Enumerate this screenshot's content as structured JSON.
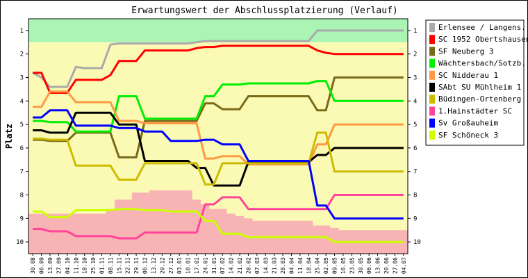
{
  "chart_data": {
    "type": "line",
    "title": "Erwartungswert der Abschlussplatzierung (Verlauf)",
    "ylabel": "Platz",
    "xlabel": "",
    "ylim": [
      1,
      10
    ],
    "y_inverted": true,
    "y_ticks": [
      1,
      2,
      3,
      4,
      5,
      6,
      7,
      8,
      9,
      10
    ],
    "x": [
      "30.08",
      "06.09",
      "13.09",
      "27.09",
      "04.10",
      "11.10",
      "18.10",
      "25.10",
      "01.11",
      "08.11",
      "15.11",
      "22.11",
      "29.11",
      "06.12",
      "13.12",
      "20.12",
      "27.12",
      "03.01",
      "10.01",
      "17.01",
      "24.01",
      "31.01",
      "07.02",
      "14.02",
      "21.02",
      "28.02",
      "07.03",
      "14.03",
      "21.03",
      "28.03",
      "04.04",
      "11.04",
      "18.04",
      "25.04",
      "02.05",
      "09.05",
      "16.05",
      "23.05",
      "30.05",
      "06.06",
      "13.06",
      "20.06",
      "27.06",
      "04.07"
    ],
    "grid": false,
    "legend_position": "right",
    "background_bands": [
      {
        "from": 0.5,
        "to": 1.5,
        "color": "#aaf5b4"
      },
      {
        "from": 1.5,
        "to": 10.5,
        "color": "#fafab4"
      }
    ],
    "area": {
      "name": "",
      "color": "#f8b4b4",
      "top": [
        8.8,
        8.8,
        8.8,
        8.8,
        8.8,
        8.8,
        8.8,
        8.8,
        8.8,
        8.6,
        8.2,
        8.2,
        7.9,
        7.9,
        7.8,
        7.8,
        7.8,
        7.8,
        7.8,
        8.2,
        8.4,
        8.6,
        8.6,
        8.8,
        8.9,
        9.0,
        9.1,
        9.1,
        9.1,
        9.1,
        9.1,
        9.1,
        9.1,
        9.3,
        9.3,
        9.4,
        9.5,
        9.5,
        9.5,
        9.5,
        9.5,
        9.5,
        9.5,
        9.5
      ]
    },
    "series": [
      {
        "name": "Erlensee / Langens.",
        "color": "#aaaaaa",
        "values": [
          2.8,
          3.0,
          3.4,
          3.4,
          3.4,
          2.55,
          2.6,
          2.6,
          2.6,
          1.6,
          1.55,
          1.55,
          1.55,
          1.55,
          1.55,
          1.55,
          1.55,
          1.55,
          1.55,
          1.5,
          1.45,
          1.45,
          1.45,
          1.45,
          1.45,
          1.45,
          1.45,
          1.45,
          1.45,
          1.45,
          1.45,
          1.45,
          1.45,
          1.0,
          1.0,
          1.0,
          1.0,
          1.0,
          1.0,
          1.0,
          1.0,
          1.0,
          1.0,
          1.0
        ]
      },
      {
        "name": "SC 1952 Obertshausen",
        "color": "#ff0000",
        "values": [
          2.8,
          2.8,
          3.65,
          3.65,
          3.65,
          3.1,
          3.1,
          3.1,
          3.1,
          2.9,
          2.3,
          2.3,
          2.3,
          1.85,
          1.85,
          1.85,
          1.85,
          1.85,
          1.85,
          1.75,
          1.7,
          1.7,
          1.65,
          1.65,
          1.65,
          1.65,
          1.65,
          1.65,
          1.65,
          1.65,
          1.65,
          1.65,
          1.65,
          1.85,
          1.95,
          2.0,
          2.0,
          2.0,
          2.0,
          2.0,
          2.0,
          2.0,
          2.0,
          2.0
        ]
      },
      {
        "name": "SF Neuberg 3",
        "color": "#7a6a18",
        "values": [
          5.65,
          5.65,
          5.7,
          5.7,
          5.7,
          5.35,
          5.35,
          5.35,
          5.35,
          5.35,
          6.4,
          6.4,
          6.4,
          4.85,
          4.85,
          4.85,
          4.85,
          4.85,
          4.85,
          4.85,
          4.1,
          4.1,
          4.35,
          4.35,
          4.35,
          3.8,
          3.8,
          3.8,
          3.8,
          3.8,
          3.8,
          3.8,
          3.8,
          4.4,
          4.4,
          3.0,
          3.0,
          3.0,
          3.0,
          3.0,
          3.0,
          3.0,
          3.0,
          3.0
        ]
      },
      {
        "name": "Wächtersbach/Sotzb.",
        "color": "#00ee00",
        "values": [
          4.85,
          4.85,
          4.9,
          4.9,
          4.9,
          5.3,
          5.3,
          5.3,
          5.3,
          5.3,
          3.8,
          3.8,
          3.8,
          4.75,
          4.75,
          4.75,
          4.75,
          4.75,
          4.75,
          4.75,
          3.8,
          3.8,
          3.3,
          3.3,
          3.3,
          3.25,
          3.25,
          3.25,
          3.25,
          3.25,
          3.25,
          3.25,
          3.25,
          3.15,
          3.15,
          4.0,
          4.0,
          4.0,
          4.0,
          4.0,
          4.0,
          4.0,
          4.0,
          4.0
        ]
      },
      {
        "name": "SC Nidderau 1",
        "color": "#ff9944",
        "values": [
          4.25,
          4.25,
          3.6,
          3.6,
          3.6,
          4.05,
          4.05,
          4.05,
          4.05,
          4.05,
          4.85,
          4.85,
          4.85,
          4.95,
          4.95,
          4.95,
          4.95,
          4.95,
          4.95,
          4.95,
          6.45,
          6.45,
          6.35,
          6.35,
          6.35,
          6.7,
          6.7,
          6.7,
          6.7,
          6.7,
          6.7,
          6.7,
          6.7,
          5.85,
          5.85,
          5.0,
          5.0,
          5.0,
          5.0,
          5.0,
          5.0,
          5.0,
          5.0,
          5.0
        ]
      },
      {
        "name": "SAbt SU Mühlheim 1",
        "color": "#000000",
        "values": [
          5.25,
          5.25,
          5.35,
          5.35,
          5.35,
          4.5,
          4.5,
          4.5,
          4.5,
          4.5,
          5.0,
          5.0,
          5.0,
          6.55,
          6.55,
          6.55,
          6.55,
          6.55,
          6.55,
          6.85,
          6.85,
          7.6,
          7.6,
          7.6,
          7.6,
          6.6,
          6.6,
          6.6,
          6.6,
          6.6,
          6.6,
          6.6,
          6.6,
          6.3,
          6.3,
          6.0,
          6.0,
          6.0,
          6.0,
          6.0,
          6.0,
          6.0,
          6.0,
          6.0
        ]
      },
      {
        "name": "Büdingen-Ortenberg",
        "color": "#ccbb00",
        "values": [
          5.6,
          5.6,
          5.65,
          5.65,
          5.65,
          6.75,
          6.75,
          6.75,
          6.75,
          6.75,
          7.35,
          7.35,
          7.35,
          6.65,
          6.65,
          6.65,
          6.65,
          6.65,
          6.65,
          6.65,
          7.55,
          7.55,
          6.65,
          6.65,
          6.65,
          6.65,
          6.65,
          6.65,
          6.65,
          6.65,
          6.65,
          6.65,
          6.65,
          5.35,
          5.35,
          7.0,
          7.0,
          7.0,
          7.0,
          7.0,
          7.0,
          7.0,
          7.0,
          7.0
        ]
      },
      {
        "name": "1.Hainstädter SC",
        "color": "#ff4499",
        "values": [
          9.45,
          9.45,
          9.55,
          9.55,
          9.55,
          9.75,
          9.75,
          9.75,
          9.75,
          9.75,
          9.85,
          9.85,
          9.85,
          9.6,
          9.6,
          9.6,
          9.6,
          9.6,
          9.6,
          9.6,
          8.4,
          8.4,
          8.1,
          8.1,
          8.1,
          8.6,
          8.6,
          8.6,
          8.6,
          8.6,
          8.6,
          8.6,
          8.6,
          8.6,
          8.6,
          8.0,
          8.0,
          8.0,
          8.0,
          8.0,
          8.0,
          8.0,
          8.0,
          8.0
        ]
      },
      {
        "name": "Sv Großauheim",
        "color": "#0000ff",
        "values": [
          4.7,
          4.7,
          4.4,
          4.4,
          4.4,
          5.05,
          5.05,
          5.05,
          5.05,
          5.05,
          5.15,
          5.15,
          5.15,
          5.3,
          5.3,
          5.3,
          5.7,
          5.7,
          5.7,
          5.7,
          5.65,
          5.65,
          5.85,
          5.85,
          5.85,
          6.55,
          6.55,
          6.55,
          6.55,
          6.55,
          6.55,
          6.55,
          6.55,
          8.45,
          8.45,
          9.0,
          9.0,
          9.0,
          9.0,
          9.0,
          9.0,
          9.0,
          9.0,
          9.0
        ]
      },
      {
        "name": "SF Schöneck 3",
        "color": "#ccff00",
        "values": [
          8.7,
          8.7,
          8.95,
          8.95,
          8.95,
          8.65,
          8.65,
          8.65,
          8.65,
          8.65,
          8.6,
          8.6,
          8.6,
          8.65,
          8.65,
          8.65,
          8.7,
          8.7,
          8.7,
          8.7,
          9.1,
          9.1,
          9.65,
          9.65,
          9.65,
          9.8,
          9.8,
          9.8,
          9.8,
          9.8,
          9.8,
          9.8,
          9.8,
          9.8,
          9.8,
          10.0,
          10.0,
          10.0,
          10.0,
          10.0,
          10.0,
          10.0,
          10.0,
          10.0
        ]
      }
    ]
  }
}
